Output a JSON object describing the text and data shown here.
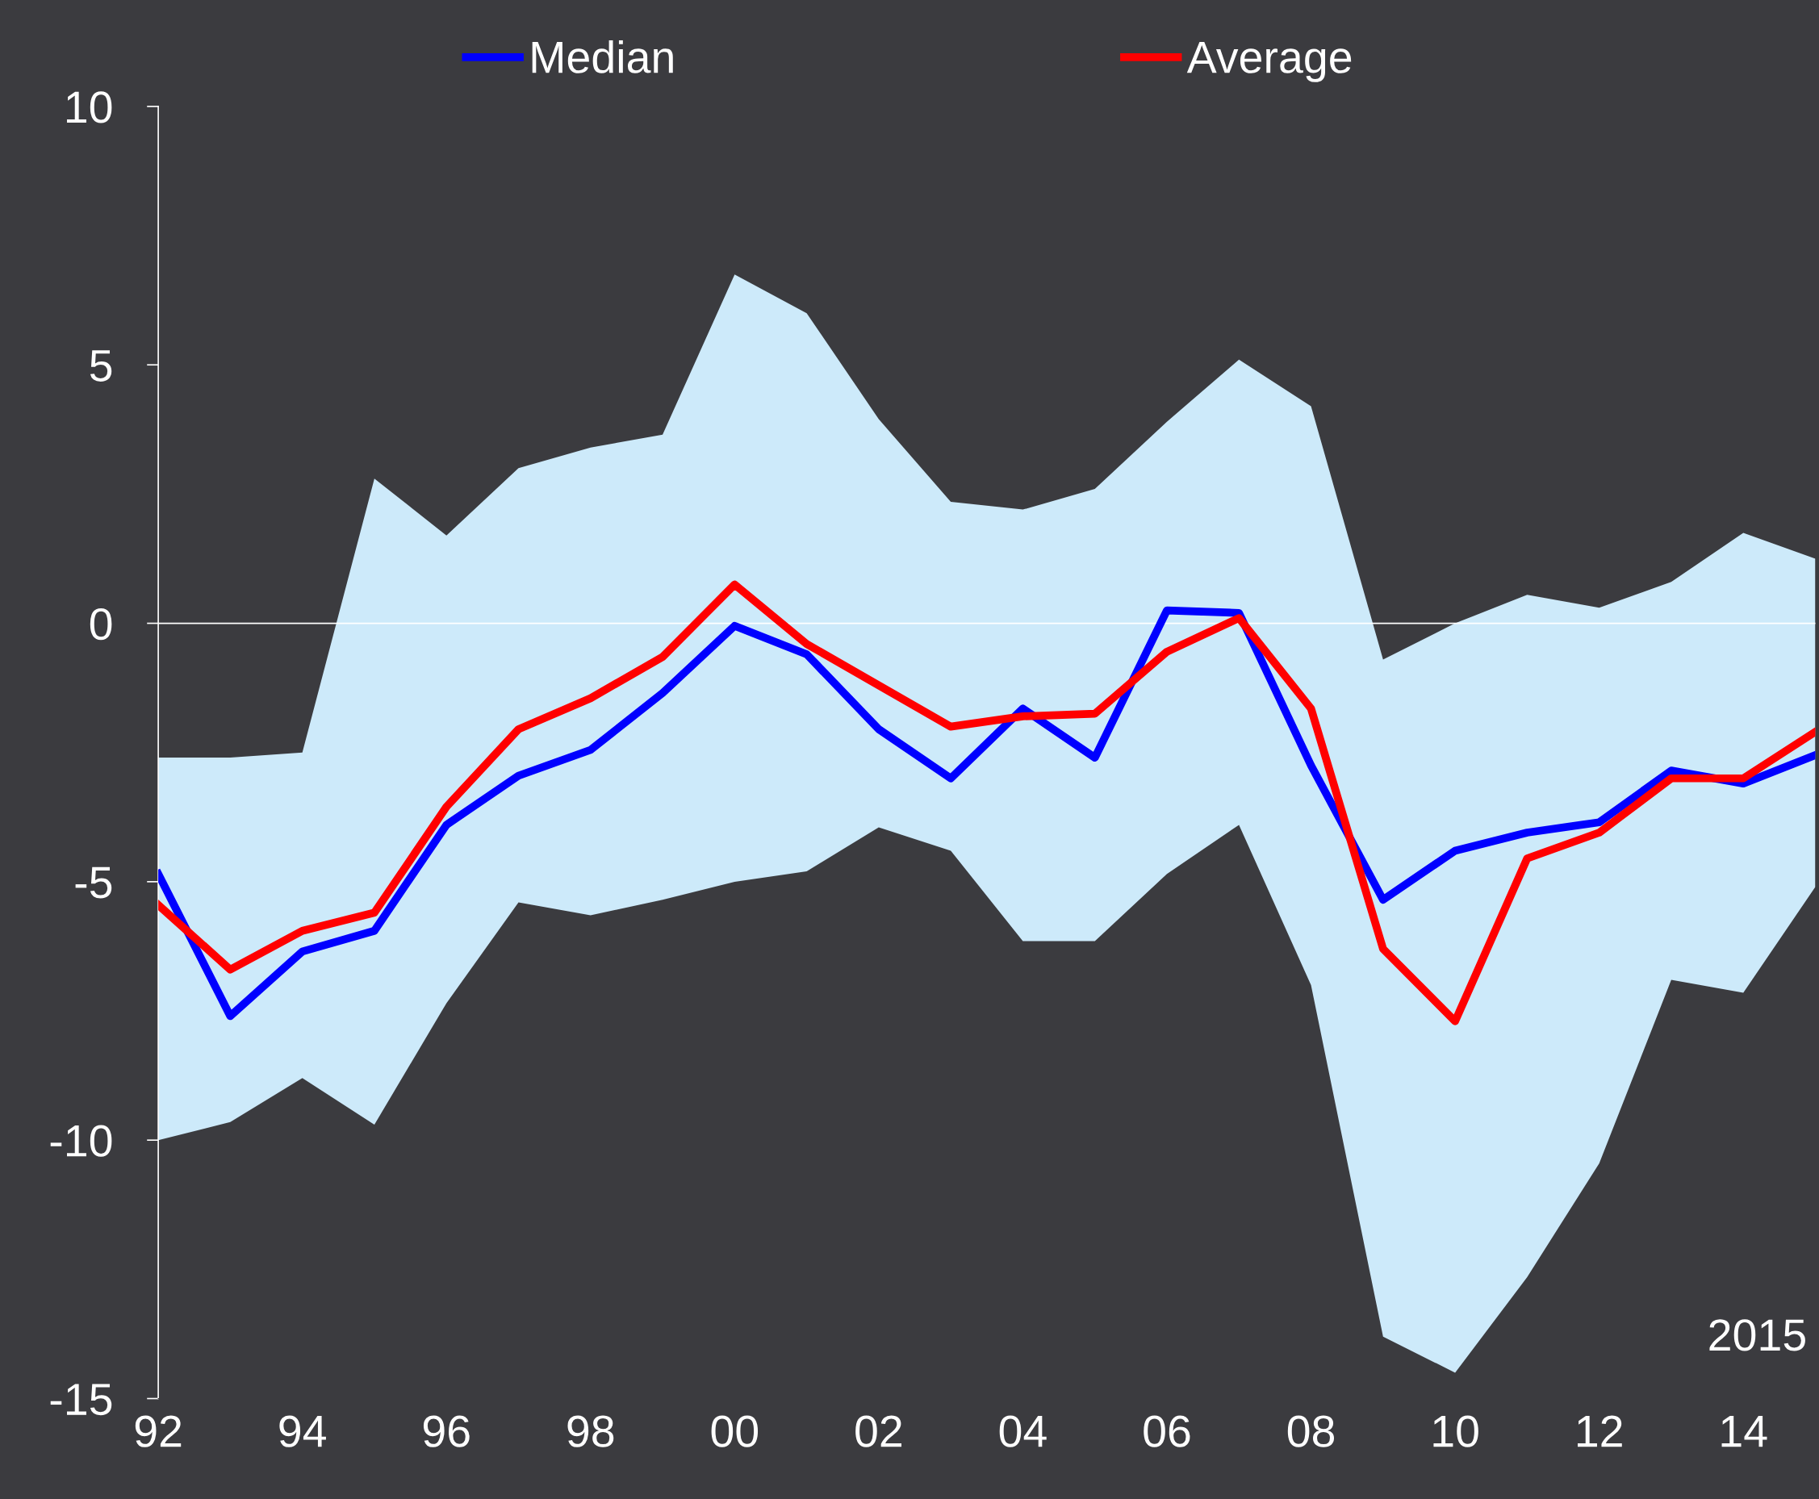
{
  "chart_data": {
    "type": "line",
    "x": [
      1992,
      1993,
      1994,
      1995,
      1996,
      1997,
      1998,
      1999,
      2000,
      2001,
      2002,
      2003,
      2004,
      2005,
      2006,
      2007,
      2008,
      2009,
      2010,
      2011,
      2012,
      2013,
      2014,
      2015
    ],
    "series": [
      {
        "name": "Median",
        "color": "#0000ff",
        "values": [
          -4.85,
          -7.6,
          -6.35,
          -5.95,
          -3.9,
          -2.95,
          -2.45,
          -1.35,
          -0.05,
          -0.6,
          -2.05,
          -3.0,
          -1.65,
          -2.6,
          0.25,
          0.2,
          -2.75,
          -5.35,
          -4.4,
          -4.05,
          -3.85,
          -2.85,
          -3.1,
          -2.55
        ],
        "upper": [
          -2.6,
          -2.6,
          -2.5,
          2.8,
          1.7,
          3.0,
          3.4,
          3.65,
          6.75,
          6.0,
          3.95,
          2.35,
          2.2,
          2.6,
          3.9,
          5.1,
          4.2,
          -0.7,
          0.0,
          0.55,
          0.3,
          0.8,
          1.75,
          1.25
        ],
        "lower": [
          -10.0,
          -9.65,
          -8.8,
          -9.7,
          -7.35,
          -5.4,
          -5.65,
          -5.35,
          -5.0,
          -4.8,
          -3.95,
          -4.4,
          -6.15,
          -6.15,
          -4.85,
          -3.9,
          -7.0,
          -13.8,
          -14.5,
          -12.65,
          -10.45,
          -6.9,
          -7.15,
          -5.1
        ]
      },
      {
        "name": "Average",
        "color": "#ff0000",
        "values": [
          -5.45,
          -6.7,
          -5.95,
          -5.6,
          -3.55,
          -2.05,
          -1.45,
          -0.65,
          0.75,
          -0.4,
          -1.2,
          -2.0,
          -1.8,
          -1.75,
          -0.55,
          0.1,
          -1.65,
          -6.3,
          -7.7,
          -4.55,
          -4.05,
          -3.0,
          -3.0,
          -2.1
        ]
      }
    ],
    "xlim": [
      1992,
      2015
    ],
    "xticks": [
      {
        "value": 1992,
        "label": "92"
      },
      {
        "value": 1994,
        "label": "94"
      },
      {
        "value": 1996,
        "label": "96"
      },
      {
        "value": 1998,
        "label": "98"
      },
      {
        "value": 2000,
        "label": "00"
      },
      {
        "value": 2002,
        "label": "02"
      },
      {
        "value": 2004,
        "label": "04"
      },
      {
        "value": 2006,
        "label": "06"
      },
      {
        "value": 2008,
        "label": "08"
      },
      {
        "value": 2010,
        "label": "10"
      },
      {
        "value": 2012,
        "label": "12"
      },
      {
        "value": 2014,
        "label": "14"
      }
    ],
    "ylim": [
      -15,
      10
    ],
    "yticks": [
      -15,
      -10,
      -5,
      0,
      5,
      10
    ],
    "ref_lines": [
      {
        "axis": "y",
        "value": 0,
        "color": "#ffffff"
      }
    ],
    "annotations": [
      "2015"
    ],
    "legend": "top",
    "grid": false,
    "marker": "none",
    "line_style": "solid"
  }
}
